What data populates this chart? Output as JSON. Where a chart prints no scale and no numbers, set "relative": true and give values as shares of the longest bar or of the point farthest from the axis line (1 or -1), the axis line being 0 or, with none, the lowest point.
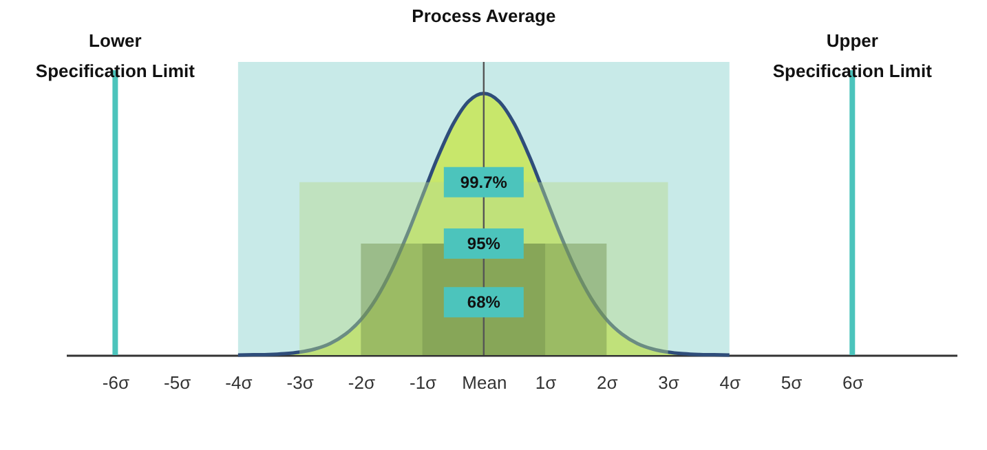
{
  "chart_data": {
    "type": "area",
    "relative": true,
    "x": [
      -4,
      -3.75,
      -3.5,
      -3.25,
      -3,
      -2.75,
      -2.5,
      -2.25,
      -2,
      -1.75,
      -1.5,
      -1.25,
      -1,
      -0.75,
      -0.5,
      -0.25,
      0,
      0.25,
      0.5,
      0.75,
      1,
      1.25,
      1.5,
      1.75,
      2,
      2.25,
      2.5,
      2.75,
      3,
      3.25,
      3.5,
      3.75,
      4
    ],
    "series": [
      {
        "color": "#c8e636",
        "values": [
          0.0,
          0.001,
          0.002,
          0.005,
          0.011,
          0.023,
          0.044,
          0.08,
          0.135,
          0.216,
          0.325,
          0.458,
          0.607,
          0.755,
          0.882,
          0.969,
          1,
          0.969,
          0.882,
          0.755,
          0.607,
          0.458,
          0.325,
          0.216,
          0.135,
          0.08,
          0.044,
          0.023,
          0.011,
          0.005,
          0.002,
          0.001,
          0.0
        ]
      }
    ],
    "xlim": [
      -6.8,
      7.7
    ],
    "xticks": [
      {
        "value": -6,
        "label": "-6σ"
      },
      {
        "value": -5,
        "label": "-5σ"
      },
      {
        "value": -4,
        "label": "-4σ"
      },
      {
        "value": -3,
        "label": "-3σ"
      },
      {
        "value": -2,
        "label": "-2σ"
      },
      {
        "value": -1,
        "label": "-1σ"
      },
      {
        "value": 0,
        "label": "Mean"
      },
      {
        "value": 1,
        "label": "1σ"
      },
      {
        "value": 2,
        "label": "2σ"
      },
      {
        "value": 3,
        "label": "3σ"
      },
      {
        "value": 4,
        "label": "4σ"
      },
      {
        "value": 5,
        "label": "5σ"
      },
      {
        "value": 6,
        "label": "6σ"
      }
    ],
    "tick_labels": "x",
    "grid": false,
    "bands": [
      {
        "axis": "x",
        "from": -4,
        "to": 4,
        "color": "#c8eae8"
      },
      {
        "axis": "x",
        "from": -3,
        "to": 3,
        "label": "99.7%",
        "color": "#b5d98f"
      },
      {
        "axis": "x",
        "from": -2,
        "to": 2,
        "label": "95%",
        "color": "#6f8f4a"
      },
      {
        "axis": "x",
        "from": -1,
        "to": 1,
        "label": "68%",
        "color": "#6f8f4a"
      }
    ],
    "ref_lines": [
      {
        "axis": "x",
        "value": -6,
        "label": "Lower Specification Limit",
        "color": "#4cc4bc"
      },
      {
        "axis": "x",
        "value": 0,
        "label": "Process Average",
        "color": "#555555"
      },
      {
        "axis": "x",
        "value": 6,
        "label": "Upper Specification Limit",
        "color": "#4cc4bc"
      }
    ]
  }
}
